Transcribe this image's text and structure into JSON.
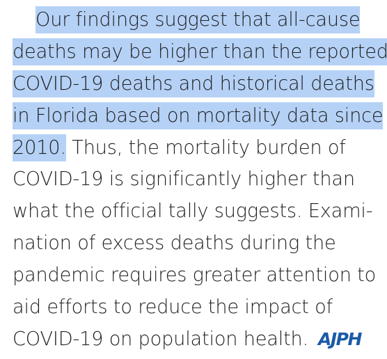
{
  "paragraph": {
    "lines": [
      {
        "highlighted": "Our findings suggest that all-cause",
        "rest": ""
      },
      {
        "highlighted": "deaths may be higher than the reported",
        "rest": ""
      },
      {
        "highlighted": "COVID-19 deaths and historical deaths",
        "rest": ""
      },
      {
        "highlighted": "in Florida based on mortality data since",
        "rest": ""
      },
      {
        "highlighted": "2010.",
        "rest": " Thus, the mortality burden of"
      },
      {
        "highlighted": "",
        "rest": "COVID-19 is significantly higher than"
      },
      {
        "highlighted": "",
        "rest": "what the official tally suggests. Exami-"
      },
      {
        "highlighted": "",
        "rest": "nation of excess deaths during the"
      },
      {
        "highlighted": "",
        "rest": "pandemic requires greater attention to"
      },
      {
        "highlighted": "",
        "rest": "aid efforts to reduce the impact of"
      },
      {
        "highlighted": "",
        "rest": "COVID-19 on population health."
      }
    ]
  },
  "journal_logo": "AJPH",
  "colors": {
    "highlight": "#b5d1f6",
    "text": "#1f1f1f",
    "logo": "#1c5aa8"
  }
}
